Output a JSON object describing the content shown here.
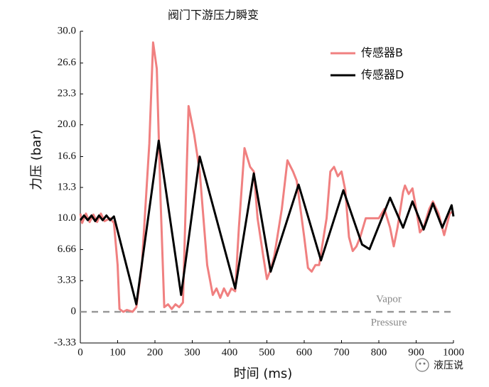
{
  "chart_data": {
    "type": "line",
    "title": "阀门下游压力瞬变",
    "xlabel": "时间 (ms)",
    "ylabel": "力压 (bar)",
    "xlim": [
      0,
      1000
    ],
    "ylim": [
      -3.33,
      30
    ],
    "xticks": [
      0,
      100,
      200,
      300,
      400,
      500,
      600,
      700,
      800,
      900,
      1000
    ],
    "yticks": [
      -3.33,
      0,
      3.33,
      6.66,
      {
        "value": 10,
        "label": "10.0"
      },
      13.3,
      16.6,
      {
        "value": 20,
        "label": "20.0"
      },
      23.3,
      26.6,
      {
        "value": 30,
        "label": "30.0"
      }
    ],
    "legend": "upper right",
    "reference_line": {
      "value": 0,
      "lines": [
        "Vapor",
        "Pressure"
      ],
      "color": "#999999"
    },
    "watermark": "液压说",
    "series": [
      {
        "name": "传感器B",
        "color": "#f08080",
        "x": [
          0,
          5,
          15,
          25,
          35,
          45,
          55,
          65,
          80,
          90,
          100,
          105,
          115,
          125,
          140,
          150,
          165,
          185,
          195,
          205,
          215,
          225,
          235,
          245,
          255,
          265,
          275,
          285,
          290,
          300,
          305,
          320,
          340,
          355,
          365,
          375,
          385,
          395,
          405,
          415,
          425,
          440,
          455,
          465,
          475,
          490,
          500,
          510,
          520,
          540,
          555,
          570,
          580,
          600,
          610,
          620,
          630,
          640,
          660,
          670,
          680,
          690,
          700,
          710,
          720,
          730,
          740,
          750,
          765,
          800,
          815,
          830,
          840,
          850,
          865,
          870,
          880,
          890,
          900,
          910,
          920,
          935,
          945,
          960,
          975,
          990,
          1000
        ],
        "values": [
          10.5,
          9.5,
          10.5,
          9.6,
          10.4,
          9.6,
          10.5,
          9.7,
          10,
          9.5,
          5,
          0.3,
          0,
          0.2,
          0,
          0.5,
          5,
          18,
          28.8,
          26,
          12,
          0.5,
          0.8,
          0.3,
          0.8,
          0.5,
          1,
          15,
          22,
          20,
          19,
          15,
          5,
          1.8,
          2.5,
          1.5,
          2.5,
          1.7,
          2.5,
          2.2,
          9,
          17.5,
          15.5,
          15,
          10,
          6,
          3.5,
          4.5,
          6,
          11,
          16.2,
          15,
          14,
          8,
          4.7,
          4.3,
          5,
          5,
          10,
          15,
          15.5,
          14.5,
          15,
          13,
          8,
          6.5,
          7,
          8,
          10,
          10,
          11,
          9,
          7,
          9,
          12.8,
          13.5,
          12.6,
          13.2,
          11,
          8.5,
          9,
          11,
          11.8,
          10.5,
          8.2,
          10.5,
          10.8
        ]
      },
      {
        "name": "传感器D",
        "color": "#000000",
        "x": [
          0,
          10,
          20,
          30,
          40,
          50,
          60,
          70,
          80,
          90,
          150,
          210,
          270,
          320,
          415,
          465,
          510,
          585,
          645,
          705,
          755,
          775,
          830,
          865,
          890,
          920,
          945,
          970,
          995,
          1000
        ],
        "values": [
          9.8,
          10.3,
          9.8,
          10.3,
          9.7,
          10.3,
          9.8,
          10.3,
          9.8,
          10.2,
          0.8,
          18.3,
          1.8,
          16.6,
          2.5,
          14.8,
          4.3,
          13.6,
          5.5,
          13,
          7.2,
          6.7,
          12.2,
          9,
          11.8,
          8.8,
          11.6,
          9,
          11.4,
          10.2
        ]
      }
    ]
  }
}
